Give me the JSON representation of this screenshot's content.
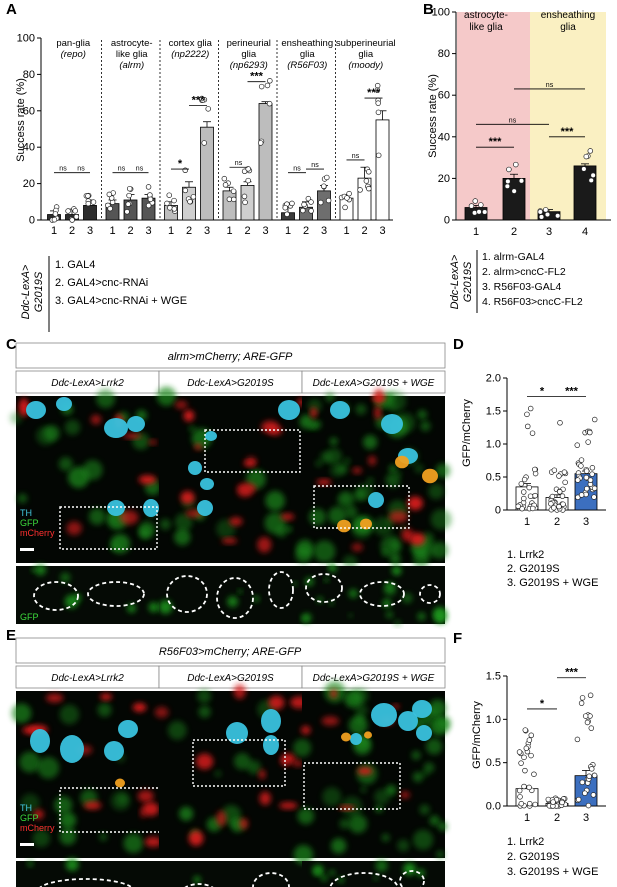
{
  "panel_labels": {
    "A": "A",
    "B": "B",
    "C": "C",
    "D": "D",
    "E": "E",
    "F": "F"
  },
  "panelA": {
    "ylabel": "Success rate (%)",
    "yticks": [
      "0",
      "20",
      "40",
      "60",
      "80",
      "100"
    ],
    "groups": [
      {
        "name_lines": [
          "pan-glia",
          "(repo)"
        ],
        "italic_line": 1
      },
      {
        "name_lines": [
          "astrocyte-",
          "like glia",
          "(alrm)"
        ],
        "italic_line": 2
      },
      {
        "name_lines": [
          "cortex glia",
          "(np2222)"
        ],
        "italic_line": 1
      },
      {
        "name_lines": [
          "perineurial",
          "glia",
          "(np6293)"
        ],
        "italic_line": 2
      },
      {
        "name_lines": [
          "ensheathing",
          "glia",
          "(R56F03)"
        ],
        "italic_line": 2
      },
      {
        "name_lines": [
          "subperineurial",
          "glia",
          "(moody)"
        ],
        "italic_line": 2
      }
    ],
    "xticks": [
      "1",
      "2",
      "3"
    ],
    "sig": [
      [
        "ns",
        "ns"
      ],
      [
        "ns",
        "ns"
      ],
      [
        "*",
        "***"
      ],
      [
        "ns",
        "***"
      ],
      [
        "ns",
        "ns"
      ],
      [
        "ns",
        "***"
      ]
    ],
    "genotype_label": [
      "Ddc-LexA>",
      "G2019S"
    ],
    "legend": [
      "1. GAL4",
      "2. GAL4>cnc-RNAi",
      "3. GAL4>cnc-RNAi + WGE"
    ]
  },
  "panelB": {
    "ylabel": "Success rate (%)",
    "yticks": [
      "0",
      "20",
      "40",
      "60",
      "80",
      "100"
    ],
    "regions": [
      {
        "label_lines": [
          "astrocyte-",
          "like glia"
        ],
        "color": "#f5c9c9"
      },
      {
        "label_lines": [
          "ensheathing",
          "glia"
        ],
        "color": "#faf0c2"
      }
    ],
    "xticks": [
      "1",
      "2",
      "3",
      "4"
    ],
    "sig": [
      "***",
      "***",
      "ns",
      "ns"
    ],
    "genotype_label": [
      "Ddc-LexA>",
      "G2019S"
    ],
    "legend": [
      "1. alrm-GAL4",
      "2. alrm>cncC-FL2",
      "3. R56F03-GAL4",
      "4. R56F03>cncC-FL2"
    ]
  },
  "panelC": {
    "title": "alrm>mCherry; ARE-GFP",
    "columns": [
      "Ddc-LexA>Lrrk2",
      "Ddc-LexA>G2019S",
      "Ddc-LexA>G2019S + WGE"
    ],
    "channels": [
      {
        "name": "TH",
        "color": "#44c8e0"
      },
      {
        "name": "GFP",
        "color": "#3ddc3d"
      },
      {
        "name": "mCherry",
        "color": "#ff3030"
      }
    ],
    "inset_label": "GFP"
  },
  "panelD": {
    "ylabel": "GFP/mCherry",
    "yticks": [
      "0",
      "0.5",
      "1.0",
      "1.5",
      "2.0"
    ],
    "xticks": [
      "1",
      "2",
      "3"
    ],
    "sig": [
      "*",
      "***"
    ],
    "legend": [
      "1. Lrrk2",
      "2. G2019S",
      "3. G2019S + WGE"
    ]
  },
  "panelE": {
    "title": "R56F03>mCherry; ARE-GFP",
    "columns": [
      "Ddc-LexA>Lrrk2",
      "Ddc-LexA>G2019S",
      "Ddc-LexA>G2019S + WGE"
    ],
    "channels": [
      {
        "name": "TH",
        "color": "#44c8e0"
      },
      {
        "name": "GFP",
        "color": "#3ddc3d"
      },
      {
        "name": "mCherry",
        "color": "#ff3030"
      }
    ],
    "inset_label": "GFP"
  },
  "panelF": {
    "ylabel": "GFP/mCherry",
    "yticks": [
      "0.0",
      "0.5",
      "1.0",
      "1.5"
    ],
    "xticks": [
      "1",
      "2",
      "3"
    ],
    "sig": [
      "*",
      "***"
    ],
    "legend": [
      "1. Lrrk2",
      "2. G2019S",
      "3. G2019S + WGE"
    ]
  },
  "chart_data": [
    {
      "type": "bar",
      "panel": "A",
      "ylabel": "Success rate (%)",
      "ylim": [
        0,
        100
      ],
      "groups": [
        "pan-glia (repo)",
        "astrocyte-like glia (alrm)",
        "cortex glia (np2222)",
        "perineurial glia (np6293)",
        "ensheathing glia (R56F03)",
        "subperineurial glia (moody)"
      ],
      "categories": [
        "1",
        "2",
        "3"
      ],
      "values": [
        [
          3,
          3,
          8
        ],
        [
          9,
          11,
          12
        ],
        [
          8,
          18,
          51
        ],
        [
          16,
          19,
          64
        ],
        [
          4,
          7,
          16
        ],
        [
          12,
          23,
          55
        ]
      ],
      "errors": [
        [
          2,
          3,
          3
        ],
        [
          2,
          3,
          2
        ],
        [
          2,
          3,
          3
        ],
        [
          2,
          2,
          1
        ],
        [
          4,
          3,
          3
        ],
        [
          2,
          6,
          5
        ]
      ]
    },
    {
      "type": "bar",
      "panel": "B",
      "ylabel": "Success rate (%)",
      "ylim": [
        0,
        100
      ],
      "categories": [
        "1",
        "2",
        "3",
        "4"
      ],
      "values": [
        6,
        20,
        4,
        26
      ],
      "errors": [
        1,
        2,
        1,
        1
      ]
    },
    {
      "type": "bar",
      "panel": "D",
      "ylabel": "GFP/mCherry",
      "ylim": [
        0,
        2.0
      ],
      "categories": [
        "1",
        "2",
        "3"
      ],
      "values": [
        0.35,
        0.19,
        0.55
      ],
      "errors": [
        0.05,
        0.04,
        0.04
      ]
    },
    {
      "type": "bar",
      "panel": "F",
      "ylabel": "GFP/mCherry",
      "ylim": [
        0,
        1.5
      ],
      "categories": [
        "1",
        "2",
        "3"
      ],
      "values": [
        0.2,
        0.03,
        0.35
      ],
      "errors": [
        0.03,
        0.01,
        0.06
      ]
    }
  ]
}
